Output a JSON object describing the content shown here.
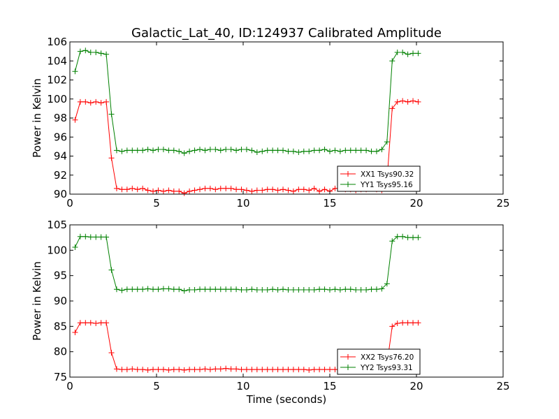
{
  "figure": {
    "title": "Galactic_Lat_40, ID:124937 Calibrated Amplitude"
  },
  "chart_data": [
    {
      "type": "line",
      "title": "Galactic_Lat_40, ID:124937 Calibrated Amplitude",
      "xlabel": "",
      "ylabel": "Power in Kelvin",
      "xlim": [
        0,
        25
      ],
      "ylim": [
        90,
        106
      ],
      "xticks": [
        0,
        5,
        10,
        15,
        20,
        25
      ],
      "yticks": [
        90,
        92,
        94,
        96,
        98,
        100,
        102,
        104,
        106
      ],
      "grid": false,
      "legend_position": "bottom-right",
      "x": [
        0.3,
        0.6,
        0.9,
        1.2,
        1.5,
        1.8,
        2.1,
        2.4,
        2.7,
        3.0,
        3.3,
        3.6,
        3.9,
        4.2,
        4.5,
        4.8,
        5.1,
        5.4,
        5.7,
        6.0,
        6.3,
        6.6,
        6.9,
        7.2,
        7.5,
        7.8,
        8.1,
        8.4,
        8.7,
        9.0,
        9.3,
        9.6,
        9.9,
        10.2,
        10.5,
        10.8,
        11.1,
        11.4,
        11.7,
        12.0,
        12.3,
        12.6,
        12.9,
        13.2,
        13.5,
        13.8,
        14.1,
        14.4,
        14.7,
        15.0,
        15.3,
        15.6,
        15.9,
        16.2,
        16.5,
        16.8,
        17.1,
        17.4,
        17.7,
        18.0,
        18.3,
        18.6,
        18.9,
        19.2,
        19.5,
        19.8,
        20.1
      ],
      "series": [
        {
          "name": "XX1 Tsys90.32",
          "color": "#ff0000",
          "values": [
            97.8,
            99.7,
            99.7,
            99.6,
            99.7,
            99.6,
            99.7,
            93.8,
            90.6,
            90.5,
            90.5,
            90.6,
            90.5,
            90.6,
            90.4,
            90.3,
            90.4,
            90.3,
            90.4,
            90.3,
            90.3,
            90.1,
            90.3,
            90.4,
            90.5,
            90.6,
            90.6,
            90.5,
            90.6,
            90.6,
            90.6,
            90.5,
            90.5,
            90.4,
            90.3,
            90.4,
            90.4,
            90.5,
            90.5,
            90.4,
            90.5,
            90.4,
            90.3,
            90.5,
            90.5,
            90.4,
            90.6,
            90.3,
            90.5,
            90.3,
            90.6,
            90.6,
            90.5,
            90.5,
            90.4,
            90.5,
            90.5,
            90.6,
            90.5,
            90.4,
            91.4,
            99.0,
            99.7,
            99.8,
            99.7,
            99.8,
            99.7
          ]
        },
        {
          "name": "YY1 Tsys95.16",
          "color": "#008000",
          "values": [
            102.9,
            105.0,
            105.1,
            104.9,
            104.9,
            104.8,
            104.7,
            98.4,
            94.6,
            94.5,
            94.6,
            94.6,
            94.6,
            94.6,
            94.7,
            94.6,
            94.7,
            94.7,
            94.6,
            94.6,
            94.5,
            94.3,
            94.5,
            94.6,
            94.7,
            94.6,
            94.7,
            94.7,
            94.6,
            94.7,
            94.7,
            94.6,
            94.7,
            94.7,
            94.6,
            94.4,
            94.5,
            94.6,
            94.6,
            94.6,
            94.6,
            94.5,
            94.5,
            94.4,
            94.5,
            94.5,
            94.6,
            94.6,
            94.7,
            94.5,
            94.6,
            94.5,
            94.6,
            94.6,
            94.6,
            94.6,
            94.6,
            94.5,
            94.5,
            94.7,
            95.5,
            104.0,
            104.9,
            104.9,
            104.7,
            104.8,
            104.8
          ]
        }
      ]
    },
    {
      "type": "line",
      "title": "",
      "xlabel": "Time (seconds)",
      "ylabel": "Power in Kelvin",
      "xlim": [
        0,
        25
      ],
      "ylim": [
        75,
        105
      ],
      "xticks": [
        0,
        5,
        10,
        15,
        20,
        25
      ],
      "yticks": [
        75,
        80,
        85,
        90,
        95,
        100,
        105
      ],
      "grid": false,
      "legend_position": "bottom-right",
      "x": [
        0.3,
        0.6,
        0.9,
        1.2,
        1.5,
        1.8,
        2.1,
        2.4,
        2.7,
        3.0,
        3.3,
        3.6,
        3.9,
        4.2,
        4.5,
        4.8,
        5.1,
        5.4,
        5.7,
        6.0,
        6.3,
        6.6,
        6.9,
        7.2,
        7.5,
        7.8,
        8.1,
        8.4,
        8.7,
        9.0,
        9.3,
        9.6,
        9.9,
        10.2,
        10.5,
        10.8,
        11.1,
        11.4,
        11.7,
        12.0,
        12.3,
        12.6,
        12.9,
        13.2,
        13.5,
        13.8,
        14.1,
        14.4,
        14.7,
        15.0,
        15.3,
        15.6,
        15.9,
        16.2,
        16.5,
        16.8,
        17.1,
        17.4,
        17.7,
        18.0,
        18.3,
        18.6,
        18.9,
        19.2,
        19.5,
        19.8,
        20.1
      ],
      "series": [
        {
          "name": "XX2 Tsys76.20",
          "color": "#ff0000",
          "values": [
            83.8,
            85.7,
            85.7,
            85.7,
            85.6,
            85.7,
            85.7,
            79.8,
            76.6,
            76.5,
            76.5,
            76.6,
            76.5,
            76.5,
            76.4,
            76.5,
            76.5,
            76.5,
            76.4,
            76.5,
            76.5,
            76.4,
            76.5,
            76.5,
            76.5,
            76.6,
            76.5,
            76.6,
            76.6,
            76.7,
            76.6,
            76.6,
            76.5,
            76.5,
            76.5,
            76.5,
            76.5,
            76.5,
            76.5,
            76.5,
            76.5,
            76.5,
            76.5,
            76.5,
            76.5,
            76.4,
            76.5,
            76.5,
            76.5,
            76.5,
            76.5,
            76.5,
            76.6,
            76.5,
            76.4,
            76.5,
            76.5,
            76.5,
            76.4,
            76.5,
            77.5,
            85.0,
            85.6,
            85.7,
            85.7,
            85.7,
            85.7
          ]
        },
        {
          "name": "YY2 Tsys93.31",
          "color": "#008000",
          "values": [
            100.6,
            102.7,
            102.7,
            102.6,
            102.6,
            102.6,
            102.6,
            96.1,
            92.3,
            92.1,
            92.3,
            92.3,
            92.3,
            92.3,
            92.4,
            92.3,
            92.3,
            92.4,
            92.4,
            92.3,
            92.3,
            92.0,
            92.2,
            92.2,
            92.3,
            92.3,
            92.3,
            92.3,
            92.3,
            92.3,
            92.3,
            92.3,
            92.2,
            92.2,
            92.3,
            92.2,
            92.2,
            92.2,
            92.3,
            92.2,
            92.3,
            92.2,
            92.2,
            92.2,
            92.2,
            92.2,
            92.2,
            92.3,
            92.3,
            92.2,
            92.3,
            92.2,
            92.3,
            92.3,
            92.2,
            92.2,
            92.2,
            92.3,
            92.3,
            92.4,
            93.4,
            101.8,
            102.7,
            102.7,
            102.5,
            102.5,
            102.5
          ]
        }
      ]
    }
  ]
}
